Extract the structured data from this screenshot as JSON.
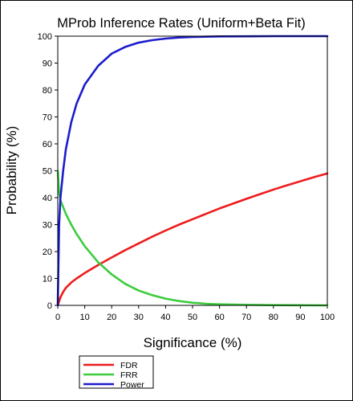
{
  "chart_data": {
    "type": "line",
    "title": "MProb Inference Rates (Uniform+Beta Fit)",
    "xlabel": "Significance (%)",
    "ylabel": "Probability (%)",
    "xlim": [
      0,
      100
    ],
    "ylim": [
      0,
      100
    ],
    "xticks": [
      0,
      10,
      20,
      30,
      40,
      50,
      60,
      70,
      80,
      90,
      100
    ],
    "yticks": [
      0,
      10,
      20,
      30,
      40,
      50,
      60,
      70,
      80,
      90,
      100
    ],
    "grid": false,
    "legend_position": "bottom-left below plot",
    "series": [
      {
        "name": "FDR",
        "color": "#ee1c1c",
        "x": [
          0,
          0.5,
          1,
          2,
          3,
          5,
          7,
          10,
          15,
          20,
          25,
          30,
          35,
          40,
          45,
          50,
          55,
          60,
          65,
          70,
          75,
          80,
          85,
          90,
          95,
          100
        ],
        "y": [
          0,
          1.5,
          3,
          5,
          6.5,
          8.5,
          10,
          12,
          15,
          17.8,
          20.5,
          23,
          25.5,
          27.8,
          30,
          32,
          34,
          36,
          37.8,
          39.6,
          41.3,
          43,
          44.6,
          46.1,
          47.6,
          49
        ]
      },
      {
        "name": "FRR",
        "color": "#3ccc3c",
        "x": [
          0,
          0.5,
          1,
          2,
          3,
          5,
          7,
          10,
          15,
          20,
          25,
          30,
          35,
          40,
          45,
          50,
          55,
          60,
          70,
          80,
          90,
          100
        ],
        "y": [
          50,
          42,
          39,
          36.5,
          34,
          30,
          26.5,
          22,
          16,
          11.5,
          8,
          5.5,
          3.8,
          2.5,
          1.6,
          1,
          0.6,
          0.4,
          0.2,
          0.1,
          0.05,
          0
        ]
      },
      {
        "name": "Power",
        "color": "#1c1ccc",
        "x": [
          0,
          0.5,
          1,
          2,
          3,
          5,
          7,
          10,
          15,
          20,
          25,
          30,
          35,
          40,
          45,
          50,
          60,
          70,
          80,
          90,
          100
        ],
        "y": [
          0,
          30,
          40,
          50,
          58,
          68,
          75,
          82,
          89,
          93.5,
          96,
          97.6,
          98.5,
          99.1,
          99.5,
          99.7,
          99.9,
          99.95,
          100,
          100,
          100
        ]
      }
    ]
  }
}
